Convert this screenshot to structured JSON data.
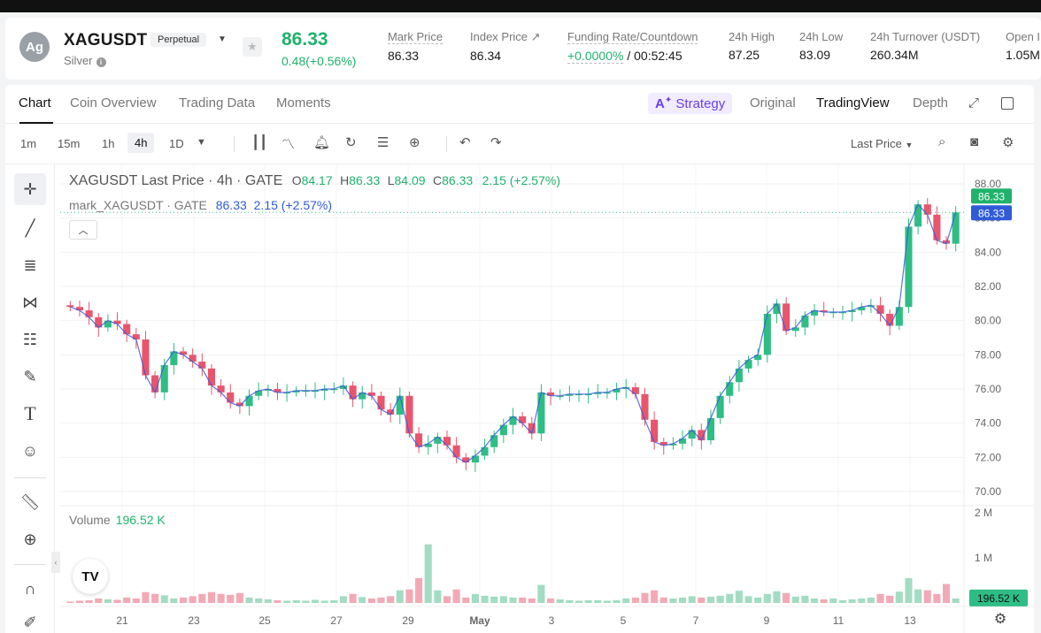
{
  "header": {
    "avatar_text": "Ag",
    "symbol": "XAGUSDT",
    "contract_type": "Perpetual",
    "name": "Silver",
    "last_price": "86.33",
    "change": "0.48(+0.56%)",
    "stats": [
      {
        "label": "Mark Price",
        "value": "86.33"
      },
      {
        "label": "Index Price ↗",
        "value": "86.34"
      },
      {
        "label": "Funding Rate/Countdown",
        "value_green": "+0.0000%",
        "value": " / 00:52:45"
      },
      {
        "label": "24h High",
        "value": "87.25"
      },
      {
        "label": "24h Low",
        "value": "83.09"
      },
      {
        "label": "24h Turnover (USDT)",
        "value": "260.34M"
      },
      {
        "label": "Open I",
        "value": "1.05M"
      }
    ]
  },
  "tabs": [
    "Chart",
    "Coin Overview",
    "Trading Data",
    "Moments"
  ],
  "views": {
    "strategy": "Strategy",
    "original": "Original",
    "tradingview": "TradingView",
    "depth": "Depth"
  },
  "timeframes": [
    "1m",
    "15m",
    "1h",
    "4h",
    "1D"
  ],
  "active_timeframe": "4h",
  "price_source": "Last Price",
  "legend": {
    "title": "XAGUSDT Last Price · 4h · GATE",
    "o_label": "O",
    "o": "84.17",
    "h_label": "H",
    "h": "86.33",
    "l_label": "L",
    "l": "84.09",
    "c_label": "C",
    "c": "86.33",
    "chg": "2.15 (+2.57%)",
    "mark_name": "mark_XAGUSDT · GATE",
    "mark_val": "86.33",
    "mark_chg": "2.15 (+2.57%)"
  },
  "volume_legend": {
    "label": "Volume",
    "value": "196.52 K"
  },
  "chart_data": {
    "type": "candlestick",
    "y_ticks": [
      "88.00",
      "86.00",
      "84.00",
      "82.00",
      "80.00",
      "78.00",
      "76.00",
      "74.00",
      "72.00",
      "70.00"
    ],
    "ylim": [
      70,
      88
    ],
    "x_ticks": [
      "21",
      "23",
      "25",
      "27",
      "29",
      "May",
      "3",
      "5",
      "7",
      "9",
      "11",
      "13"
    ],
    "price_labels": [
      "86.33",
      "86.33"
    ],
    "volume_ticks": [
      "2 M",
      "1 M"
    ],
    "volume_current": "196.52 K",
    "close_path": [
      80.8,
      80.6,
      80.2,
      79.6,
      80.0,
      79.8,
      79.2,
      78.9,
      76.8,
      75.8,
      77.4,
      78.2,
      78.0,
      77.6,
      77.2,
      76.2,
      75.8,
      75.2,
      75.0,
      75.6,
      75.9,
      76.0,
      75.8,
      75.8,
      75.9,
      75.9,
      75.9,
      76.0,
      76.0,
      76.2,
      75.4,
      75.8,
      75.6,
      74.8,
      74.5,
      75.6,
      73.4,
      72.6,
      72.8,
      73.2,
      72.7,
      72.0,
      71.7,
      72.1,
      72.6,
      73.3,
      73.9,
      74.4,
      74.0,
      73.4,
      75.8,
      75.6,
      75.6,
      75.7,
      75.7,
      75.7,
      75.8,
      75.8,
      76.0,
      76.1,
      75.7,
      74.2,
      72.9,
      72.7,
      72.8,
      73.1,
      73.6,
      73.0,
      74.3,
      75.6,
      76.4,
      77.2,
      77.7,
      78.0,
      80.4,
      81.0,
      79.4,
      79.6,
      80.3,
      80.6,
      80.5,
      80.5,
      80.5,
      80.6,
      80.8,
      80.9,
      80.4,
      79.7,
      80.8,
      85.5,
      86.8,
      86.2,
      84.7,
      84.5,
      86.33
    ],
    "volume_path": [
      0.03,
      0.05,
      0.06,
      0.1,
      0.08,
      0.07,
      0.12,
      0.1,
      0.24,
      0.2,
      0.17,
      0.1,
      0.12,
      0.15,
      0.2,
      0.24,
      0.2,
      0.18,
      0.22,
      0.12,
      0.1,
      0.08,
      0.06,
      0.05,
      0.06,
      0.05,
      0.07,
      0.05,
      0.06,
      0.15,
      0.2,
      0.13,
      0.1,
      0.12,
      0.15,
      0.28,
      0.3,
      0.55,
      1.3,
      0.28,
      0.15,
      0.3,
      0.12,
      0.2,
      0.16,
      0.14,
      0.15,
      0.12,
      0.12,
      0.1,
      0.4,
      0.1,
      0.08,
      0.06,
      0.05,
      0.06,
      0.06,
      0.05,
      0.06,
      0.1,
      0.12,
      0.22,
      0.28,
      0.12,
      0.1,
      0.12,
      0.15,
      0.12,
      0.14,
      0.16,
      0.2,
      0.27,
      0.15,
      0.12,
      0.2,
      0.26,
      0.22,
      0.14,
      0.16,
      0.1,
      0.08,
      0.1,
      0.06,
      0.08,
      0.1,
      0.12,
      0.2,
      0.16,
      0.25,
      0.55,
      0.3,
      0.28,
      0.2,
      0.42,
      0.1
    ]
  }
}
